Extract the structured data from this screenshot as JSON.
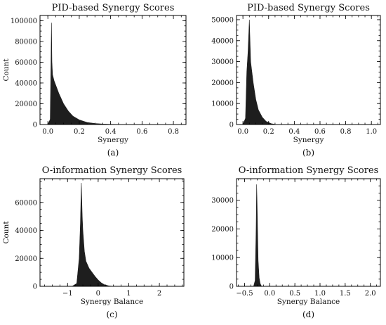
{
  "chart_data": [
    {
      "panel": "a",
      "type": "area",
      "title": "PID-based Synergy Scores",
      "xlabel": "Synergy",
      "ylabel": "Count",
      "caption": "(a)",
      "xlim": [
        -0.05,
        0.88
      ],
      "ylim": [
        0,
        105000
      ],
      "xticks": [
        0.0,
        0.2,
        0.4,
        0.6,
        0.8
      ],
      "xtick_labels": [
        "0.0",
        "0.2",
        "0.4",
        "0.6",
        "0.8"
      ],
      "yticks": [
        0,
        20000,
        40000,
        60000,
        80000,
        100000
      ],
      "ytick_labels": [
        "0",
        "20000",
        "40000",
        "60000",
        "80000",
        "100000"
      ],
      "grid": false,
      "x": [
        0.0,
        0.015,
        0.02,
        0.023,
        0.026,
        0.03,
        0.04,
        0.05,
        0.07,
        0.1,
        0.13,
        0.16,
        0.2,
        0.25,
        0.3,
        0.35,
        0.4,
        0.45,
        0.5
      ],
      "y": [
        0,
        5000,
        60000,
        98000,
        60000,
        48000,
        42000,
        38000,
        30000,
        20000,
        13000,
        8000,
        4500,
        2000,
        1000,
        500,
        250,
        100,
        0
      ]
    },
    {
      "panel": "b",
      "type": "area",
      "title": "PID-based Synergy Scores",
      "xlabel": "Synergy",
      "ylabel": "",
      "caption": "(b)",
      "xlim": [
        -0.05,
        1.07
      ],
      "ylim": [
        0,
        52000
      ],
      "xticks": [
        0.0,
        0.2,
        0.4,
        0.6,
        0.8,
        1.0
      ],
      "xtick_labels": [
        "0.0",
        "0.2",
        "0.4",
        "0.6",
        "0.8",
        "1.0"
      ],
      "yticks": [
        0,
        10000,
        20000,
        30000,
        40000,
        50000
      ],
      "ytick_labels": [
        "0",
        "10000",
        "20000",
        "30000",
        "40000",
        "50000"
      ],
      "grid": false,
      "x": [
        0.0,
        0.02,
        0.03,
        0.04,
        0.05,
        0.06,
        0.07,
        0.08,
        0.1,
        0.12,
        0.15,
        0.18,
        0.22,
        0.26
      ],
      "y": [
        0,
        3000,
        25000,
        35000,
        50000,
        30000,
        25000,
        20000,
        12000,
        7000,
        3500,
        1500,
        400,
        0
      ]
    },
    {
      "panel": "c",
      "type": "area",
      "title": "O-information Synergy Scores",
      "xlabel": "Synergy Balance",
      "ylabel": "Count",
      "caption": "(c)",
      "xlim": [
        -1.9,
        2.8
      ],
      "ylim": [
        0,
        77000
      ],
      "xticks": [
        -1,
        0,
        1,
        2
      ],
      "xtick_labels": [
        "−1",
        "0",
        "1",
        "2"
      ],
      "yticks": [
        0,
        20000,
        40000,
        60000
      ],
      "ytick_labels": [
        "0",
        "20000",
        "40000",
        "60000"
      ],
      "grid": false,
      "x": [
        -0.85,
        -0.7,
        -0.62,
        -0.58,
        -0.55,
        -0.52,
        -0.5,
        -0.45,
        -0.4,
        -0.3,
        -0.2,
        -0.1,
        0.0,
        0.1,
        0.2,
        0.35,
        0.5
      ],
      "y": [
        0,
        2000,
        20000,
        45000,
        74000,
        50000,
        40000,
        25000,
        18000,
        13000,
        10000,
        7000,
        4500,
        2500,
        1200,
        300,
        0
      ]
    },
    {
      "panel": "d",
      "type": "area",
      "title": "O-information Synergy Scores",
      "xlabel": "Synergy Balance",
      "ylabel": "",
      "caption": "(d)",
      "xlim": [
        -0.66,
        2.2
      ],
      "ylim": [
        0,
        37500
      ],
      "xticks": [
        -0.5,
        0.0,
        0.5,
        1.0,
        1.5,
        2.0
      ],
      "xtick_labels": [
        "−0.5",
        "0.0",
        "0.5",
        "1.0",
        "1.5",
        "2.0"
      ],
      "yticks": [
        0,
        10000,
        20000,
        30000
      ],
      "ytick_labels": [
        "0",
        "10000",
        "20000",
        "30000"
      ],
      "grid": false,
      "x": [
        -0.32,
        -0.29,
        -0.27,
        -0.26,
        -0.25,
        -0.24,
        -0.23,
        -0.21,
        -0.19,
        -0.17,
        -0.15
      ],
      "y": [
        0,
        2000,
        20000,
        35500,
        28000,
        18000,
        9000,
        3000,
        1000,
        200,
        0
      ]
    }
  ]
}
